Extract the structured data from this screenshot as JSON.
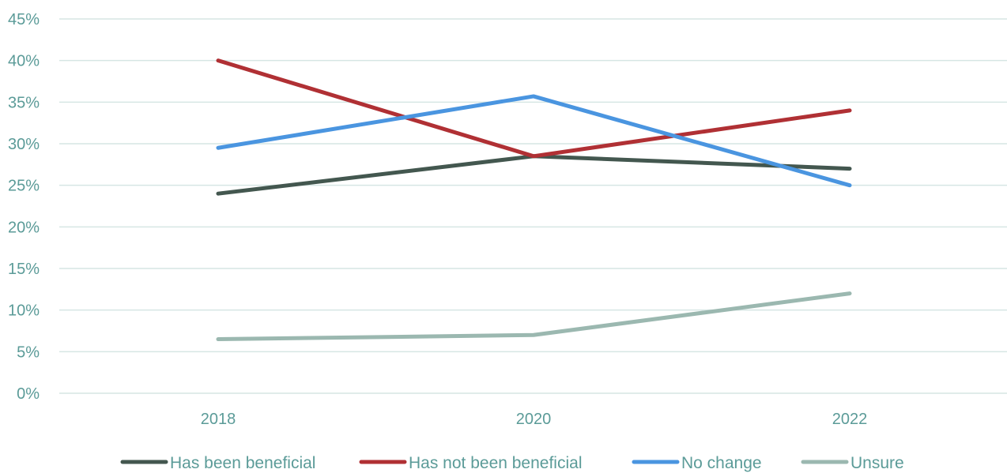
{
  "chart_data": {
    "type": "line",
    "title": "",
    "xlabel": "",
    "ylabel": "",
    "categories": [
      "2018",
      "2020",
      "2022"
    ],
    "ylim": [
      0,
      45
    ],
    "y_ticks": [
      0,
      5,
      10,
      15,
      20,
      25,
      30,
      35,
      40,
      45
    ],
    "y_tick_labels": [
      "0%",
      "5%",
      "10%",
      "15%",
      "20%",
      "25%",
      "30%",
      "35%",
      "40%",
      "45%"
    ],
    "grid": true,
    "legend_position": "bottom",
    "tick_color": "#5B9B98",
    "grid_color": "#D6E6E4",
    "series": [
      {
        "name": "Has been beneficial",
        "values": [
          24,
          28.5,
          27
        ],
        "color": "#43574F"
      },
      {
        "name": "Has not been beneficial",
        "values": [
          40,
          28.5,
          34
        ],
        "color": "#B03034"
      },
      {
        "name": "No change",
        "values": [
          29.5,
          35.7,
          25
        ],
        "color": "#4A95E0"
      },
      {
        "name": "Unsure",
        "values": [
          6.5,
          7,
          12
        ],
        "color": "#9BB8B0"
      }
    ]
  }
}
